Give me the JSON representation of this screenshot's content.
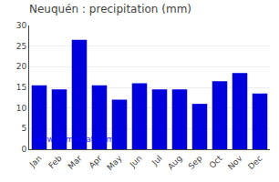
{
  "chart_data": {
    "type": "bar",
    "title": "Neuquén : precipitation (mm)",
    "categories": [
      "Jan",
      "Feb",
      "Mar",
      "Apr",
      "May",
      "Jun",
      "Jul",
      "Aug",
      "Sep",
      "Oct",
      "Nov",
      "Dec"
    ],
    "values": [
      15.5,
      14.5,
      26.5,
      15.5,
      12.0,
      16.0,
      14.5,
      14.5,
      11.0,
      16.5,
      18.5,
      13.5
    ],
    "color": "#0000dd",
    "ylim": [
      0,
      30
    ],
    "yticks": [
      0,
      5,
      10,
      15,
      20,
      25,
      30
    ],
    "grid": true,
    "annotations": [
      "www.allmetsat.com"
    ]
  }
}
